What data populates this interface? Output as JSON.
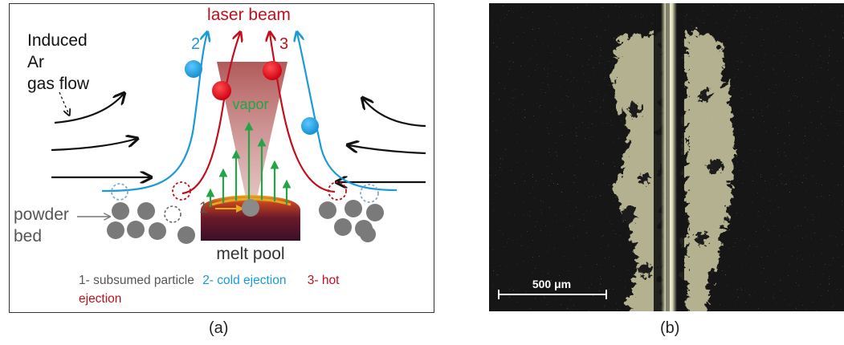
{
  "panel_a": {
    "caption": "(a)",
    "top_label": "laser beam",
    "gas_label_line1": "Induced",
    "gas_label_line2": "Ar",
    "gas_label_line3": "gas flow",
    "powder_label_line1": "powder",
    "powder_label_line2": "bed",
    "vapor_label": "vapor",
    "melt_pool_label": "melt pool",
    "num_1": "1",
    "num_2": "2",
    "num_3": "3",
    "legend_1": "1- subsumed particle",
    "legend_2": "2- cold ejection",
    "legend_3a": "3- hot",
    "legend_3b": "ejection",
    "colors": {
      "hot": "#c0101c",
      "cold": "#1a9ad6",
      "vapor": "#22a447",
      "particle": "#7a7a7a",
      "laser_cone": "#a84a4a",
      "legend_gray": "#555555"
    }
  },
  "panel_b": {
    "caption": "(b)",
    "scale_label": "500 μm"
  }
}
